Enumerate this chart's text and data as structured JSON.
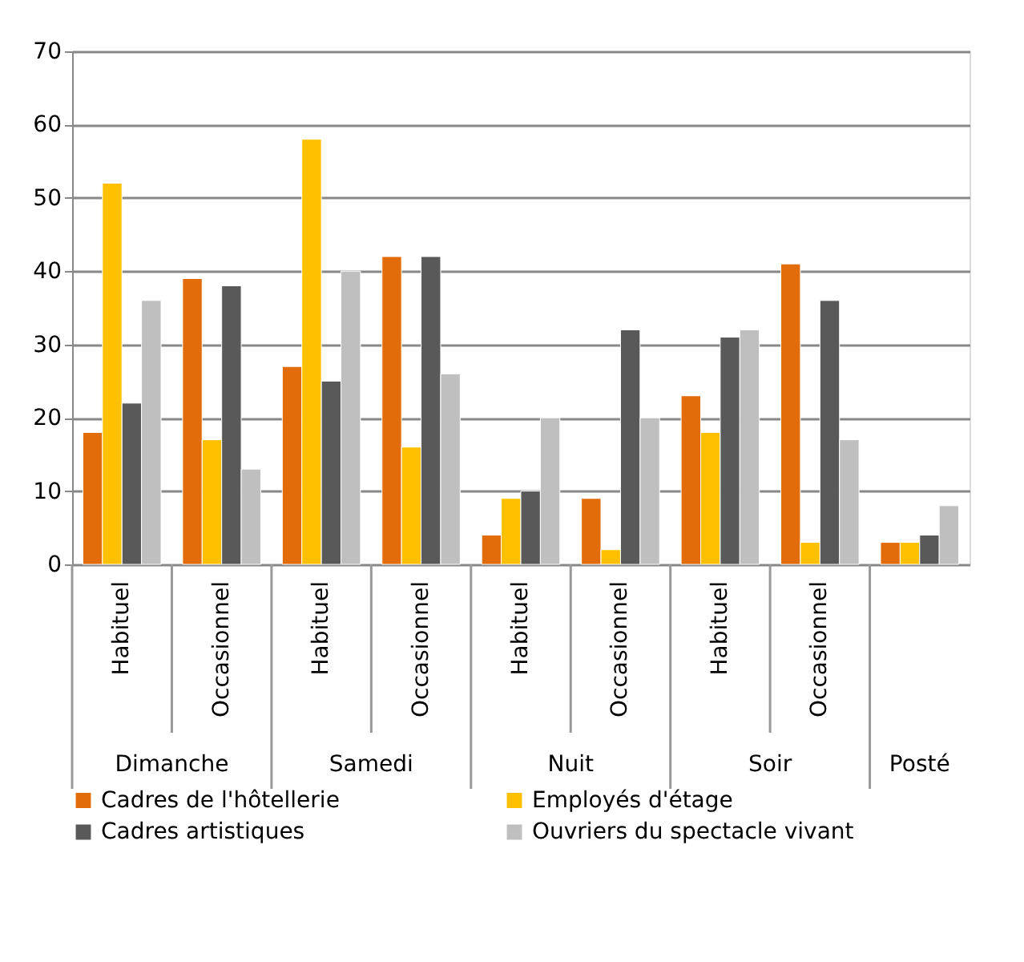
{
  "chart_data": {
    "type": "bar",
    "categories": [
      "Habituel",
      "Occasionnel",
      "Habituel",
      "Occasionnel",
      "Habituel",
      "Occasionnel",
      "Habituel",
      "Occasionnel",
      null
    ],
    "annotations": [
      "Dimanche",
      "Samedi",
      "Nuit",
      "Soir",
      "Posté"
    ],
    "series": [
      {
        "name": "Cadres de l'hôtellerie",
        "color": "#e36c0a",
        "values": [
          18,
          39,
          27,
          42,
          4,
          9,
          23,
          41,
          3
        ]
      },
      {
        "name": "Employés d'étage",
        "color": "#ffc000",
        "values": [
          52,
          17,
          58,
          16,
          9,
          2,
          18,
          3,
          3
        ]
      },
      {
        "name": "Cadres artistiques",
        "color": "#595959",
        "values": [
          22,
          38,
          25,
          42,
          10,
          32,
          31,
          36,
          4
        ]
      },
      {
        "name": "Ouvriers du spectacle vivant",
        "color": "#bfbfbf",
        "values": [
          36,
          13,
          40,
          26,
          20,
          20,
          32,
          17,
          8
        ]
      }
    ],
    "ylim": [
      0,
      70
    ],
    "yticks": [
      0,
      10,
      20,
      30,
      40,
      50,
      60,
      70
    ],
    "grid": "y",
    "legend": "bottom"
  }
}
